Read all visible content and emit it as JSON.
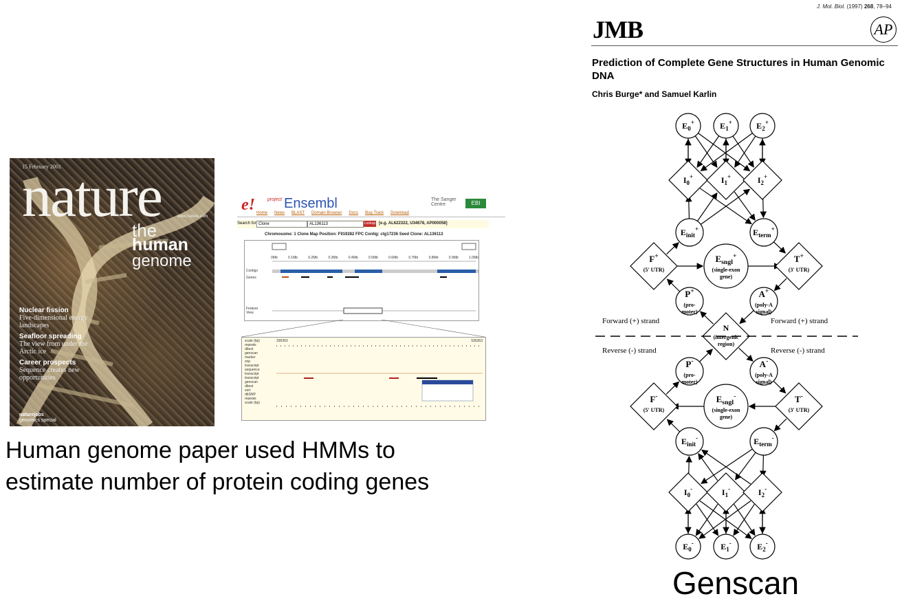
{
  "nature_cover": {
    "date": "15 February 2001",
    "masthead": "nature",
    "website": "www.nature.com",
    "headline": [
      "the",
      "human",
      "genome"
    ],
    "coverlines": [
      {
        "heading": "Nuclear fission",
        "text": "Five-dimensional energy landscapes"
      },
      {
        "heading": "Seafloor spreading",
        "text": "The view from under the Arctic ice"
      },
      {
        "heading": "Career prospects",
        "text": "Sequence creates new opportunities"
      }
    ],
    "footer": [
      "naturejobs",
      "genomics special"
    ]
  },
  "ensembl": {
    "logo_e": "e!",
    "project": "project",
    "title": "Ensembl",
    "sanger": "The Sanger Centre",
    "ebi": "EBI",
    "nav": [
      "Home",
      "News",
      "BLAST",
      "Domain Browser",
      "Docs",
      "Bug Track",
      "Download"
    ],
    "search_label": "Search for",
    "search_select": "Clone",
    "search_value": "AL136113",
    "search_button": "Lookup",
    "search_example": "[e.g. AL622322, U34678, AP000058]",
    "info": "Chromosome: 1   Clone Map Position: F919282   FPC Contig: ctg17236   Seed Clone: AL136113",
    "top_tracks": [
      "Contigs",
      "Genes"
    ],
    "scale_ticks": [
      "0Mb",
      "0.1Mb",
      "0.2Mb",
      "0.3Mb",
      "0.4Mb",
      "0.5Mb",
      "0.6Mb",
      "0.7Mb",
      "0.8Mb",
      "0.9Mb",
      "1.0Mb"
    ],
    "feature_label": "Feature View",
    "bottom_tracks": [
      "scale (bp)",
      "repeats",
      "dbest",
      "genscan",
      "marker",
      "snp",
      "transcript",
      "sequence",
      "transcript",
      "transcript",
      "genscan",
      "dbest",
      "vert",
      "dbSNP",
      "repeats",
      "scale (bp)"
    ],
    "bottom_range": [
      "336363",
      "536363"
    ]
  },
  "caption": "Human genome paper used HMMs to estimate number of protein coding genes",
  "paper": {
    "citation_prefix": "J. Mol. Biol.",
    "citation_year": "(1997)",
    "citation_volume": "268",
    "citation_pages": ", 78–94",
    "journal": "JMB",
    "publisher_logo": "AP",
    "title": "Prediction of Complete Gene Structures in Human Genomic DNA",
    "authors": "Chris Burge* and Samuel Karlin"
  },
  "genscan_states": {
    "E0p": "E0+",
    "E1p": "E1+",
    "E2p": "E2+",
    "I0p": "I0+",
    "I1p": "I1+",
    "I2p": "I2+",
    "Einitp": "Einit+",
    "Etermp": "Eterm+",
    "Fp": "F+",
    "Fp_sub": "(5' UTR)",
    "Esnglp": "Esngl+",
    "Esnglp_sub": [
      "(single-exon",
      "gene)"
    ],
    "Tp": "T+",
    "Tp_sub": "(3' UTR)",
    "Pp": "P+",
    "Pp_sub": [
      "(pro-",
      "moter)"
    ],
    "Ap": "A+",
    "Ap_sub": [
      "(poly-A",
      "signal)"
    ],
    "N": "N",
    "N_sub": [
      "(intergenic",
      "region)"
    ],
    "forward_left": "Forward (+) strand",
    "forward_right": "Forward (+) strand",
    "reverse_left": "Reverse (-) strand",
    "reverse_right": "Reverse (-) strand",
    "Pm": "P-",
    "Pm_sub": [
      "(pro-",
      "moter)"
    ],
    "Am": "A-",
    "Am_sub": [
      "(poly-A",
      "signal)"
    ],
    "Fm": "F-",
    "Fm_sub": "(5' UTR)",
    "Esnglm": "Esngl-",
    "Esnglm_sub": [
      "(single-exon",
      "gene)"
    ],
    "Tm": "T-",
    "Tm_sub": "(3' UTR)",
    "Einitm": "Einit-",
    "Etermm": "Eterm-",
    "I0m": "I0-",
    "I1m": "I1-",
    "I2m": "I2-",
    "E0m": "E0-",
    "E1m": "E1-",
    "E2m": "E2-"
  },
  "bottom_label": "Genscan"
}
